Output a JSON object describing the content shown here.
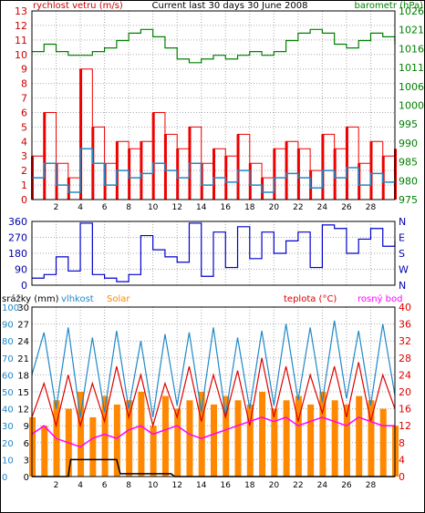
{
  "chart_data": [
    {
      "type": "line",
      "title": "Current last 30 days 30 June 2008",
      "left_axis_label": "rychlost vetru (m/s)",
      "right_axis_label": "barometr (hPa)",
      "left_ticks": [
        0,
        1,
        2,
        3,
        4,
        5,
        6,
        7,
        8,
        9,
        10,
        11,
        12,
        13
      ],
      "right_ticks": [
        975,
        980,
        985,
        990,
        995,
        1000,
        1006,
        1011,
        1016,
        1021,
        1026
      ],
      "x_ticks": [
        "2",
        "4",
        "6",
        "8",
        "10",
        "12",
        "14",
        "16",
        "18",
        "20",
        "22",
        "24",
        "26",
        "28"
      ],
      "ylim_left": [
        0,
        13
      ],
      "ylim_right": [
        975,
        1026
      ],
      "grid": true,
      "colors": {
        "gust": "#ee0000",
        "wind": "#2088c8",
        "pressure": "#008000"
      },
      "pressure": {
        "x": [
          0,
          1,
          2,
          3,
          4,
          5,
          6,
          7,
          8,
          9,
          10,
          11,
          12,
          13,
          14,
          15,
          16,
          17,
          18,
          19,
          20,
          21,
          22,
          23,
          24,
          25,
          26,
          27,
          28,
          29,
          30
        ],
        "y": [
          1015,
          1017,
          1015,
          1014,
          1014,
          1015,
          1016,
          1018,
          1020,
          1021,
          1019,
          1016,
          1013,
          1012,
          1013,
          1014,
          1013,
          1014,
          1015,
          1014,
          1015,
          1018,
          1020,
          1021,
          1020,
          1017,
          1016,
          1018,
          1020,
          1019,
          1017
        ]
      },
      "wind_avg": {
        "x": [
          0,
          1,
          2,
          3,
          4,
          5,
          6,
          7,
          8,
          9,
          10,
          11,
          12,
          13,
          14,
          15,
          16,
          17,
          18,
          19,
          20,
          21,
          22,
          23,
          24,
          25,
          26,
          27,
          28,
          29,
          30
        ],
        "y": [
          1.5,
          2.5,
          1.0,
          0.5,
          3.5,
          2.5,
          1.0,
          2.0,
          1.5,
          1.8,
          2.5,
          2.0,
          1.5,
          2.5,
          1.0,
          1.5,
          1.2,
          2.0,
          1.0,
          0.5,
          1.5,
          1.8,
          1.5,
          0.8,
          2.0,
          1.5,
          2.2,
          1.0,
          1.8,
          1.2,
          1.5
        ]
      },
      "gust": {
        "x": [
          0,
          1,
          2,
          3,
          4,
          5,
          6,
          7,
          8,
          9,
          10,
          11,
          12,
          13,
          14,
          15,
          16,
          17,
          18,
          19,
          20,
          21,
          22,
          23,
          24,
          25,
          26,
          27,
          28,
          29,
          30
        ],
        "y": [
          3,
          6,
          2.5,
          1.5,
          9,
          5,
          2.5,
          4,
          3.5,
          4,
          6,
          4.5,
          3.5,
          5,
          2.5,
          3.5,
          3,
          4.5,
          2.5,
          1.5,
          3.5,
          4,
          3.5,
          2,
          4.5,
          3.5,
          5,
          2.5,
          4,
          3,
          3.5
        ]
      }
    },
    {
      "type": "line",
      "left_ticks": [
        0,
        90,
        180,
        270,
        360
      ],
      "right_labels": [
        "N",
        "W",
        "S",
        "E",
        "N"
      ],
      "ylim": [
        0,
        360
      ],
      "grid": true,
      "colors": {
        "direction": "#0000cc"
      },
      "direction": {
        "x": [
          0,
          1,
          2,
          3,
          4,
          5,
          6,
          7,
          8,
          9,
          10,
          11,
          12,
          13,
          14,
          15,
          16,
          17,
          18,
          19,
          20,
          21,
          22,
          23,
          24,
          25,
          26,
          27,
          28,
          29,
          30
        ],
        "y": [
          40,
          60,
          160,
          80,
          350,
          60,
          40,
          20,
          60,
          280,
          200,
          160,
          130,
          350,
          50,
          300,
          100,
          330,
          150,
          300,
          180,
          250,
          300,
          100,
          340,
          320,
          180,
          260,
          320,
          220,
          250
        ]
      }
    },
    {
      "type": "line",
      "labels": {
        "rain": "srážky (mm)",
        "humidity": "vlhkost",
        "solar": "Solar",
        "temp": "teplota (°C)",
        "dew": "rosný bod"
      },
      "left_ticks_humidity": [
        0,
        10,
        20,
        30,
        40,
        50,
        60,
        70,
        80,
        90,
        100
      ],
      "left_ticks_rain": [
        0,
        3,
        6,
        9,
        12,
        15,
        18,
        21,
        24,
        27,
        30
      ],
      "right_ticks": [
        0,
        4,
        8,
        12,
        16,
        20,
        24,
        28,
        32,
        36,
        40
      ],
      "ylim_temp": [
        0,
        40
      ],
      "ylim_humidity": [
        0,
        100
      ],
      "grid": true,
      "colors": {
        "rain": "#000000",
        "humidity": "#2088c8",
        "solar": "#ff8800",
        "temp": "#dd0000",
        "dew": "#ff00ff"
      },
      "temp": {
        "x": [
          0,
          1,
          2,
          3,
          4,
          5,
          6,
          7,
          8,
          9,
          10,
          11,
          12,
          13,
          14,
          15,
          16,
          17,
          18,
          19,
          20,
          21,
          22,
          23,
          24,
          25,
          26,
          27,
          28,
          29,
          30
        ],
        "y": [
          14,
          22,
          12,
          24,
          12,
          22,
          13,
          26,
          14,
          24,
          12,
          22,
          14,
          26,
          13,
          24,
          14,
          25,
          12,
          28,
          14,
          26,
          13,
          24,
          15,
          26,
          14,
          27,
          13,
          24,
          16
        ]
      },
      "dew": {
        "x": [
          0,
          1,
          2,
          3,
          4,
          5,
          6,
          7,
          8,
          9,
          10,
          11,
          12,
          13,
          14,
          15,
          16,
          17,
          18,
          19,
          20,
          21,
          22,
          23,
          24,
          25,
          26,
          27,
          28,
          29,
          30
        ],
        "y": [
          10,
          12,
          9,
          8,
          7,
          9,
          10,
          9,
          11,
          12,
          10,
          11,
          12,
          10,
          9,
          10,
          11,
          12,
          13,
          14,
          13,
          14,
          12,
          13,
          14,
          13,
          12,
          14,
          13,
          12,
          12
        ]
      },
      "humidity": {
        "x": [
          0,
          1,
          2,
          3,
          4,
          5,
          6,
          7,
          8,
          9,
          10,
          11,
          12,
          13,
          14,
          15,
          16,
          17,
          18,
          19,
          20,
          21,
          22,
          23,
          24,
          25,
          26,
          27,
          28,
          29,
          30
        ],
        "y": [
          60,
          85,
          40,
          88,
          35,
          82,
          38,
          86,
          40,
          80,
          35,
          84,
          42,
          85,
          38,
          88,
          36,
          82,
          40,
          86,
          42,
          90,
          45,
          88,
          44,
          92,
          46,
          86,
          42,
          90,
          48
        ]
      },
      "solar": {
        "x": [
          0,
          1,
          2,
          3,
          4,
          5,
          6,
          7,
          8,
          9,
          10,
          11,
          12,
          13,
          14,
          15,
          16,
          17,
          18,
          19,
          20,
          21,
          22,
          23,
          24,
          25,
          26,
          27,
          28,
          29,
          30
        ],
        "y": [
          14,
          12,
          18,
          16,
          20,
          14,
          19,
          17,
          18,
          20,
          12,
          19,
          16,
          18,
          20,
          17,
          19,
          18,
          17,
          20,
          16,
          18,
          19,
          17,
          20,
          18,
          17,
          19,
          18,
          16,
          12
        ]
      },
      "rain_total": {
        "x": [
          0,
          3,
          3.2,
          7,
          7.3,
          10,
          11.5,
          11.8,
          30
        ],
        "y": [
          0,
          0,
          3,
          3,
          0.5,
          0.5,
          0.5,
          0,
          0
        ]
      }
    }
  ]
}
